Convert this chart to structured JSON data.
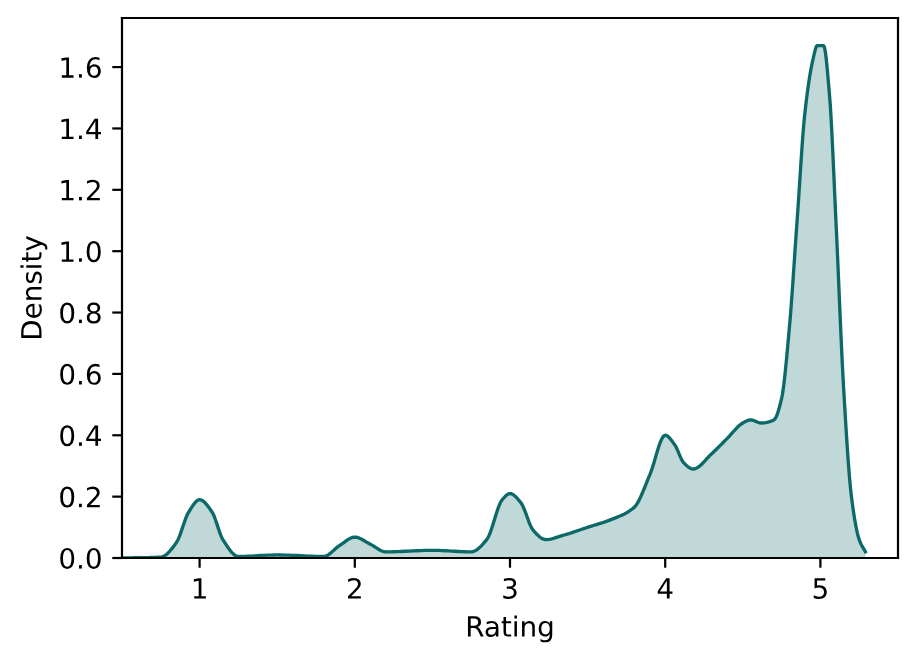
{
  "chart_data": {
    "type": "area",
    "xlabel": "Rating",
    "ylabel": "Density",
    "xlim": [
      0.5,
      5.5
    ],
    "ylim": [
      0,
      1.76
    ],
    "xticks": [
      1,
      2,
      3,
      4,
      5
    ],
    "yticks": [
      {
        "value": 0,
        "label": "0.0"
      },
      0.2,
      0.4,
      0.6,
      0.8,
      {
        "value": 1,
        "label": "1.0"
      },
      1.2,
      1.4,
      1.6
    ],
    "grid": false,
    "series": [
      {
        "color": "#0d6868",
        "x": [
          0.5,
          0.75,
          0.85,
          0.93,
          1.0,
          1.08,
          1.15,
          1.25,
          1.5,
          1.8,
          1.9,
          2.0,
          2.1,
          2.2,
          2.5,
          2.75,
          2.85,
          2.95,
          3.0,
          3.07,
          3.15,
          3.23,
          3.35,
          3.5,
          3.65,
          3.8,
          3.9,
          4.0,
          4.06,
          4.12,
          4.18,
          4.3,
          4.4,
          4.5,
          4.55,
          4.62,
          4.7,
          4.75,
          4.8,
          4.85,
          4.9,
          4.95,
          4.98,
          5.02,
          5.06,
          5.1,
          5.15,
          5.2,
          5.25,
          5.29
        ],
        "values": [
          0.0,
          0.003,
          0.05,
          0.15,
          0.19,
          0.15,
          0.06,
          0.005,
          0.01,
          0.005,
          0.04,
          0.068,
          0.045,
          0.02,
          0.025,
          0.02,
          0.06,
          0.19,
          0.21,
          0.18,
          0.09,
          0.06,
          0.075,
          0.1,
          0.125,
          0.165,
          0.27,
          0.4,
          0.37,
          0.31,
          0.29,
          0.34,
          0.39,
          0.44,
          0.45,
          0.44,
          0.45,
          0.52,
          0.75,
          1.1,
          1.45,
          1.62,
          1.67,
          1.67,
          1.5,
          1.1,
          0.55,
          0.2,
          0.06,
          0.02
        ]
      }
    ]
  }
}
